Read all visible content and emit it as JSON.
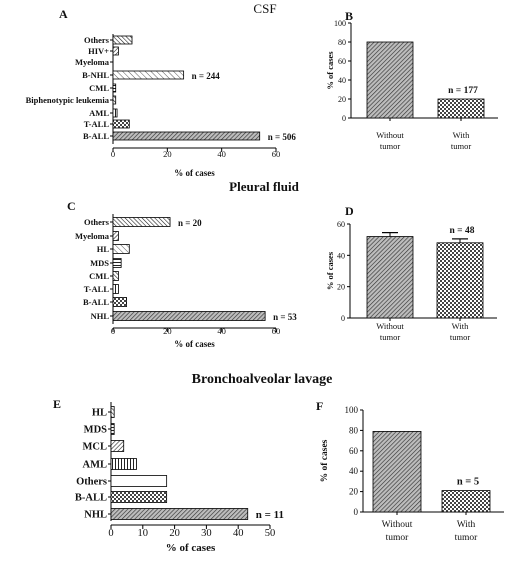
{
  "section_titles": {
    "csf": "CSF",
    "pleural": "Pleural fluid",
    "bal": "Bronchoalveolar lavage"
  },
  "chart_data": [
    {
      "panel": "A",
      "type": "bar",
      "orientation": "horizontal",
      "categories": [
        "Others",
        "HIV+",
        "Myeloma",
        "B-NHL",
        "CML",
        "Biphenotypic leukemia",
        "AML",
        "T-ALL",
        "B-ALL"
      ],
      "values": [
        7,
        2,
        0,
        26,
        1,
        1,
        1.5,
        6,
        54
      ],
      "patterns": [
        "diag-left",
        "diag-right",
        "diag-right",
        "diag-light",
        "hlines",
        "diag-left",
        "vlines",
        "check",
        "diag-dark"
      ],
      "annotations": [
        {
          "category": "B-NHL",
          "text": "n = 244"
        },
        {
          "category": "B-ALL",
          "text": "n = 506"
        }
      ],
      "xlabel": "% of cases",
      "xlim": [
        0,
        60
      ],
      "xticks": [
        0,
        20,
        40,
        60
      ]
    },
    {
      "panel": "B",
      "type": "bar",
      "categories": [
        "Without tumor",
        "With tumor"
      ],
      "values": [
        80,
        20
      ],
      "patterns": [
        "diag-dark",
        "check"
      ],
      "annotations": [
        {
          "category": "With tumor",
          "text": "n = 177"
        }
      ],
      "ylabel": "% of cases",
      "ylim": [
        0,
        100
      ],
      "yticks": [
        0,
        20,
        40,
        60,
        80,
        100
      ]
    },
    {
      "panel": "C",
      "type": "bar",
      "orientation": "horizontal",
      "categories": [
        "Others",
        "Myeloma",
        "HL",
        "MDS",
        "CML",
        "T-ALL",
        "B-ALL",
        "NHL"
      ],
      "values": [
        21,
        2,
        6,
        3,
        2,
        2,
        5,
        56
      ],
      "patterns": [
        "diag-left",
        "diag-right",
        "diag-light",
        "hlines",
        "diag-left",
        "vlines",
        "check",
        "diag-dark"
      ],
      "annotations": [
        {
          "category": "Others",
          "text": "n = 20"
        },
        {
          "category": "NHL",
          "text": "n = 53"
        }
      ],
      "xlabel": "% of cases",
      "xlim": [
        0,
        60
      ],
      "xticks": [
        0,
        20,
        40,
        60
      ]
    },
    {
      "panel": "D",
      "type": "bar",
      "categories": [
        "Without tumor",
        "With tumor"
      ],
      "values": [
        52,
        48
      ],
      "error_bars": [
        2.5,
        2.5
      ],
      "patterns": [
        "diag-dark",
        "check"
      ],
      "annotations": [
        {
          "category": "With tumor",
          "text": "n = 48"
        }
      ],
      "ylabel": "% of cases",
      "ylim": [
        0,
        60
      ],
      "yticks": [
        0,
        20,
        40,
        60
      ]
    },
    {
      "panel": "E",
      "type": "bar",
      "orientation": "horizontal",
      "categories": [
        "HL",
        "MDS",
        "MCL",
        "AML",
        "Others",
        "B-ALL",
        "NHL"
      ],
      "values": [
        1,
        1,
        4,
        8,
        17.5,
        17.5,
        43
      ],
      "patterns": [
        "diag-left",
        "hlines",
        "diag-right",
        "vlines",
        "blank",
        "check",
        "diag-dark"
      ],
      "annotations": [
        {
          "category": "NHL",
          "text": "n = 11"
        }
      ],
      "xlabel": "% of cases",
      "xlim": [
        0,
        50
      ],
      "xticks": [
        0,
        10,
        20,
        30,
        40,
        50
      ]
    },
    {
      "panel": "F",
      "type": "bar",
      "categories": [
        "Without tumor",
        "With tumor"
      ],
      "values": [
        79,
        21
      ],
      "patterns": [
        "diag-dark",
        "check"
      ],
      "annotations": [
        {
          "category": "With tumor",
          "text": "n = 5"
        }
      ],
      "ylabel": "% of cases",
      "ylim": [
        0,
        100
      ],
      "yticks": [
        0,
        20,
        40,
        60,
        80,
        100
      ]
    }
  ]
}
